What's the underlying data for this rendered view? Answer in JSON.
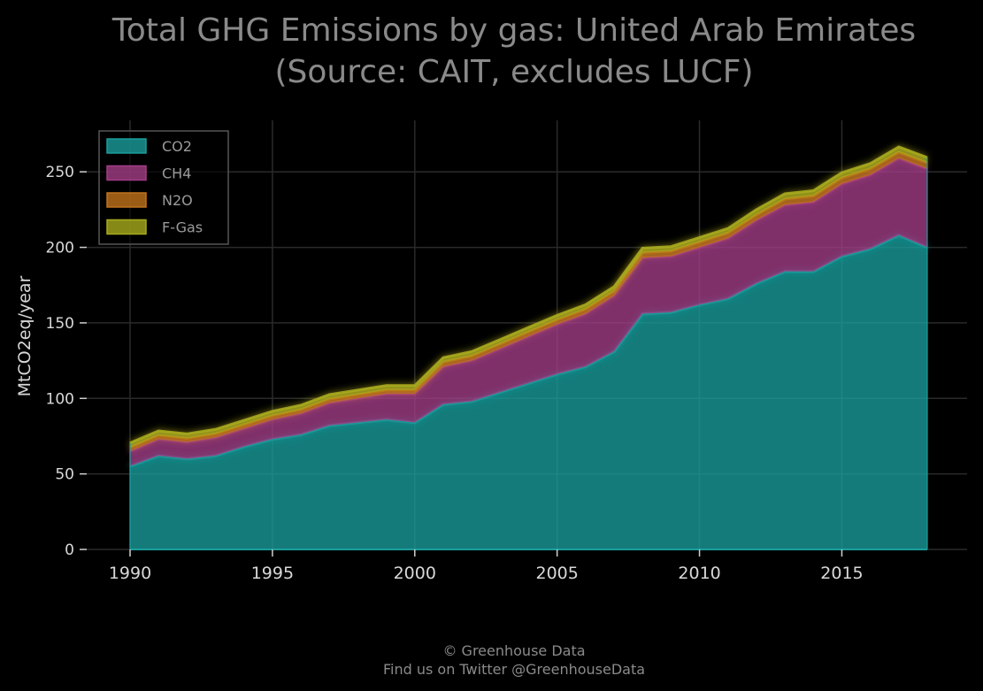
{
  "chart_data": {
    "type": "area",
    "stacked": true,
    "title": "Total GHG Emissions by gas: United Arab Emirates",
    "subtitle": "(Source: CAIT, excludes LUCF)",
    "xlabel": "",
    "ylabel": "MtCO2eq/year",
    "xlim": [
      1990,
      2018
    ],
    "ylim": [
      0,
      280
    ],
    "xticks": [
      1990,
      1995,
      2000,
      2005,
      2010,
      2015
    ],
    "yticks": [
      0,
      50,
      100,
      150,
      200,
      250
    ],
    "grid": true,
    "legend_position": "top-left",
    "x": [
      1990,
      1991,
      1992,
      1993,
      1994,
      1995,
      1996,
      1997,
      1998,
      1999,
      2000,
      2001,
      2002,
      2003,
      2004,
      2005,
      2006,
      2007,
      2008,
      2009,
      2010,
      2011,
      2012,
      2013,
      2014,
      2015,
      2016,
      2017,
      2018
    ],
    "series": [
      {
        "name": "CO2",
        "color": "#1a9e9c",
        "values": [
          55,
          62,
          60,
          62,
          68,
          73,
          76,
          82,
          84,
          86,
          84,
          96,
          98,
          104,
          110,
          116,
          121,
          131,
          156,
          157,
          162,
          166,
          176,
          184,
          184,
          194,
          199,
          208,
          200
        ]
      },
      {
        "name": "CH4",
        "color": "#a33d86",
        "values": [
          10,
          11,
          11,
          12,
          12,
          13,
          14,
          15,
          16,
          17,
          19,
          25,
          27,
          29,
          31,
          33,
          35,
          37,
          37,
          37,
          38,
          40,
          42,
          44,
          46,
          48,
          49,
          51,
          52
        ]
      },
      {
        "name": "N2O",
        "color": "#c2741c",
        "values": [
          2.5,
          2.5,
          2.5,
          2.5,
          2.5,
          2.5,
          2.5,
          2.5,
          2.5,
          2.5,
          2.5,
          3,
          3,
          3,
          3,
          3,
          3,
          3,
          3.5,
          3.5,
          3.5,
          3.5,
          3.5,
          4,
          4,
          4,
          4,
          4,
          4
        ]
      },
      {
        "name": "F-Gas",
        "color": "#a8ab1c",
        "values": [
          3,
          3,
          3,
          3,
          3,
          3,
          3,
          3,
          3,
          3,
          3,
          3,
          3,
          3,
          3,
          3,
          3,
          3,
          3,
          3,
          3,
          3,
          3.5,
          3.5,
          3.5,
          3.5,
          3.5,
          3.5,
          3.5
        ]
      }
    ]
  },
  "footer": {
    "line1": "© Greenhouse Data",
    "line2": "Find us on Twitter @GreenhouseData"
  }
}
